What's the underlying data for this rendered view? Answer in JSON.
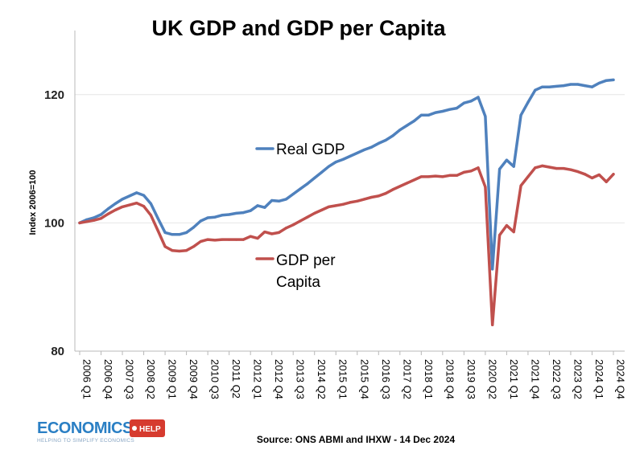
{
  "chart_data": {
    "type": "line",
    "title": "UK GDP and GDP per Capita",
    "ylabel": "Index 2006=100",
    "xlabel": "",
    "ylim": [
      80,
      130
    ],
    "yticks": [
      80,
      100,
      120
    ],
    "grid": true,
    "x_tick_labels": [
      "2006 Q1",
      "2006 Q4",
      "2007 Q3",
      "2008 Q2",
      "2009 Q1",
      "2009 Q4",
      "2010 Q3",
      "2011 Q2",
      "2012 Q1",
      "2012 Q4",
      "2013 Q3",
      "2014 Q2",
      "2015 Q1",
      "2015 Q4",
      "2016 Q3",
      "2017 Q2",
      "2018 Q1",
      "2018 Q4",
      "2019 Q3",
      "2020 Q2",
      "2021 Q1",
      "2021 Q4",
      "2022 Q3",
      "2023 Q2",
      "2024 Q1",
      "2024 Q4"
    ],
    "x": [
      "2006 Q1",
      "2006 Q2",
      "2006 Q3",
      "2006 Q4",
      "2007 Q1",
      "2007 Q2",
      "2007 Q3",
      "2007 Q4",
      "2008 Q1",
      "2008 Q2",
      "2008 Q3",
      "2008 Q4",
      "2009 Q1",
      "2009 Q2",
      "2009 Q3",
      "2009 Q4",
      "2010 Q1",
      "2010 Q2",
      "2010 Q3",
      "2010 Q4",
      "2011 Q1",
      "2011 Q2",
      "2011 Q3",
      "2011 Q4",
      "2012 Q1",
      "2012 Q2",
      "2012 Q3",
      "2012 Q4",
      "2013 Q1",
      "2013 Q2",
      "2013 Q3",
      "2013 Q4",
      "2014 Q1",
      "2014 Q2",
      "2014 Q3",
      "2014 Q4",
      "2015 Q1",
      "2015 Q2",
      "2015 Q3",
      "2015 Q4",
      "2016 Q1",
      "2016 Q2",
      "2016 Q3",
      "2016 Q4",
      "2017 Q1",
      "2017 Q2",
      "2017 Q3",
      "2017 Q4",
      "2018 Q1",
      "2018 Q2",
      "2018 Q3",
      "2018 Q4",
      "2019 Q1",
      "2019 Q2",
      "2019 Q3",
      "2019 Q4",
      "2020 Q1",
      "2020 Q2",
      "2020 Q3",
      "2020 Q4",
      "2021 Q1",
      "2021 Q2",
      "2021 Q3",
      "2021 Q4",
      "2022 Q1",
      "2022 Q2",
      "2022 Q3",
      "2022 Q4",
      "2023 Q1",
      "2023 Q2",
      "2023 Q3",
      "2023 Q4",
      "2024 Q1",
      "2024 Q2",
      "2024 Q3",
      "2024 Q4"
    ],
    "series": [
      {
        "name": "Real GDP",
        "color": "#4f81bd",
        "values": [
          100.0,
          100.5,
          100.8,
          101.3,
          102.2,
          103.0,
          103.7,
          104.2,
          104.7,
          104.3,
          103.0,
          100.7,
          98.5,
          98.2,
          98.2,
          98.5,
          99.3,
          100.3,
          100.8,
          100.9,
          101.2,
          101.3,
          101.5,
          101.6,
          101.9,
          102.7,
          102.4,
          103.5,
          103.4,
          103.7,
          104.5,
          105.3,
          106.1,
          107.0,
          107.9,
          108.8,
          109.5,
          109.9,
          110.4,
          110.9,
          111.4,
          111.8,
          112.4,
          112.9,
          113.6,
          114.5,
          115.2,
          115.9,
          116.8,
          116.8,
          117.2,
          117.4,
          117.7,
          117.9,
          118.7,
          119.0,
          119.6,
          116.6,
          92.8,
          108.4,
          109.8,
          108.8,
          116.8,
          118.8,
          120.7,
          121.2,
          121.2,
          121.3,
          121.4,
          121.6,
          121.6,
          121.4,
          121.2,
          121.8,
          122.2,
          122.3
        ],
        "label_lines": [
          "Real GDP"
        ]
      },
      {
        "name": "GDP per Capita",
        "color": "#c0504d",
        "values": [
          100.0,
          100.2,
          100.4,
          100.7,
          101.4,
          102.0,
          102.5,
          102.8,
          103.1,
          102.6,
          101.2,
          98.8,
          96.3,
          95.7,
          95.6,
          95.7,
          96.3,
          97.1,
          97.4,
          97.3,
          97.4,
          97.4,
          97.4,
          97.4,
          97.9,
          97.6,
          98.6,
          98.3,
          98.5,
          99.2,
          99.7,
          100.3,
          100.9,
          101.5,
          102.0,
          102.5,
          102.7,
          102.9,
          103.2,
          103.4,
          103.7,
          104.0,
          104.2,
          104.6,
          105.2,
          105.7,
          106.2,
          106.7,
          107.2,
          107.2,
          107.3,
          107.2,
          107.4,
          107.4,
          107.9,
          108.1,
          108.6,
          105.6,
          84.1,
          98.1,
          99.6,
          98.6,
          105.8,
          107.2,
          108.6,
          108.9,
          108.7,
          108.5,
          108.5,
          108.3,
          108.0,
          107.6,
          107.0,
          107.5,
          106.4,
          107.6
        ],
        "label_lines": [
          "GDP per",
          "Capita"
        ]
      }
    ]
  },
  "footer": {
    "source": "Source: ONS ABMI and IHXW - 14 Dec 2024",
    "logo_word": "ECONOMICS",
    "logo_badge": "HELP",
    "logo_tagline": "HELPING TO SIMPLIFY ECONOMICS",
    "logo_color": "#2a7fc4",
    "badge_color": "#d63b2f"
  }
}
